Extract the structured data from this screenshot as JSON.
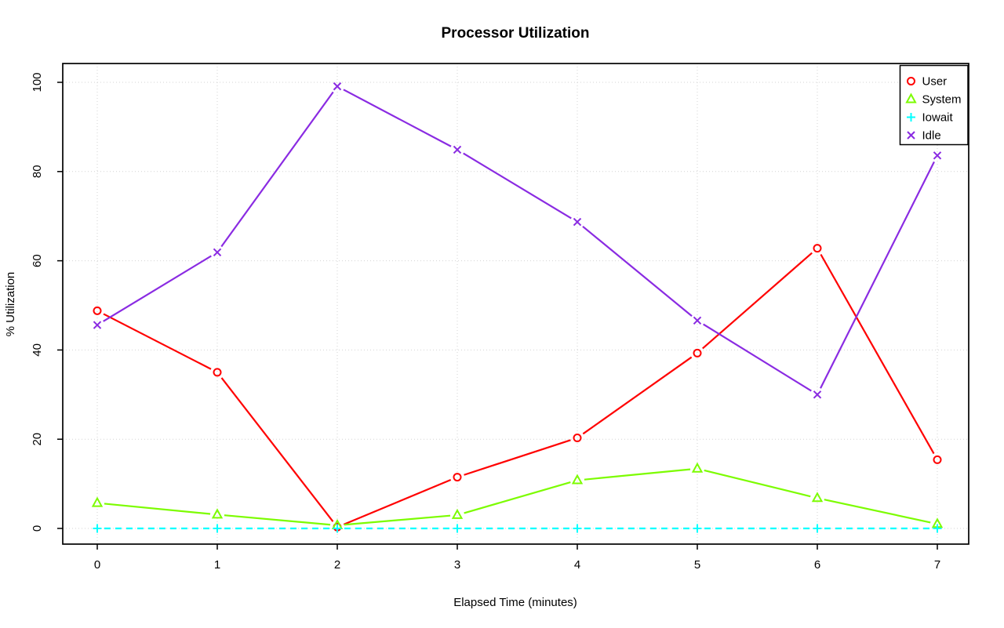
{
  "figure": {
    "background": "#FFFFFF",
    "text_color": "#000000",
    "grid_color": "#D3D3D3",
    "box_color": "#000000"
  },
  "chart_data": {
    "type": "line",
    "title": "Processor Utilization",
    "xlabel": "Elapsed Time (minutes)",
    "ylabel": "% Utilization",
    "x": [
      0,
      1,
      2,
      3,
      4,
      5,
      6,
      7
    ],
    "xticks": [
      "0",
      "1",
      "2",
      "3",
      "4",
      "5",
      "6",
      "7"
    ],
    "yticks": [
      "0",
      "20",
      "40",
      "60",
      "80",
      "100"
    ],
    "ytick_values": [
      0,
      20,
      40,
      60,
      80,
      100
    ],
    "xlim": [
      0,
      7
    ],
    "ylim": [
      0,
      100
    ],
    "grid": true,
    "grid_style": "dotted",
    "point_style": "open-markers-with-line-gaps",
    "legend": {
      "position": "topright",
      "border": true
    },
    "series": [
      {
        "name": "User",
        "color": "#FF0000",
        "marker": "circle",
        "line": "solid",
        "values": [
          48.8,
          35.0,
          0.3,
          11.5,
          20.3,
          39.3,
          62.8,
          15.4
        ]
      },
      {
        "name": "System",
        "color": "#7CFC00",
        "marker": "triangle",
        "line": "solid",
        "values": [
          5.7,
          3.1,
          0.7,
          3.0,
          10.8,
          13.4,
          6.8,
          1.0
        ]
      },
      {
        "name": "Iowait",
        "color": "#00FFFF",
        "marker": "plus",
        "line": "dashed",
        "values": [
          0,
          0,
          0,
          0,
          0,
          0,
          0,
          0
        ]
      },
      {
        "name": "Idle",
        "color": "#8A2BE2",
        "marker": "x",
        "line": "solid",
        "values": [
          45.6,
          61.9,
          99.1,
          84.9,
          68.7,
          46.6,
          30.0,
          83.6
        ]
      }
    ]
  }
}
